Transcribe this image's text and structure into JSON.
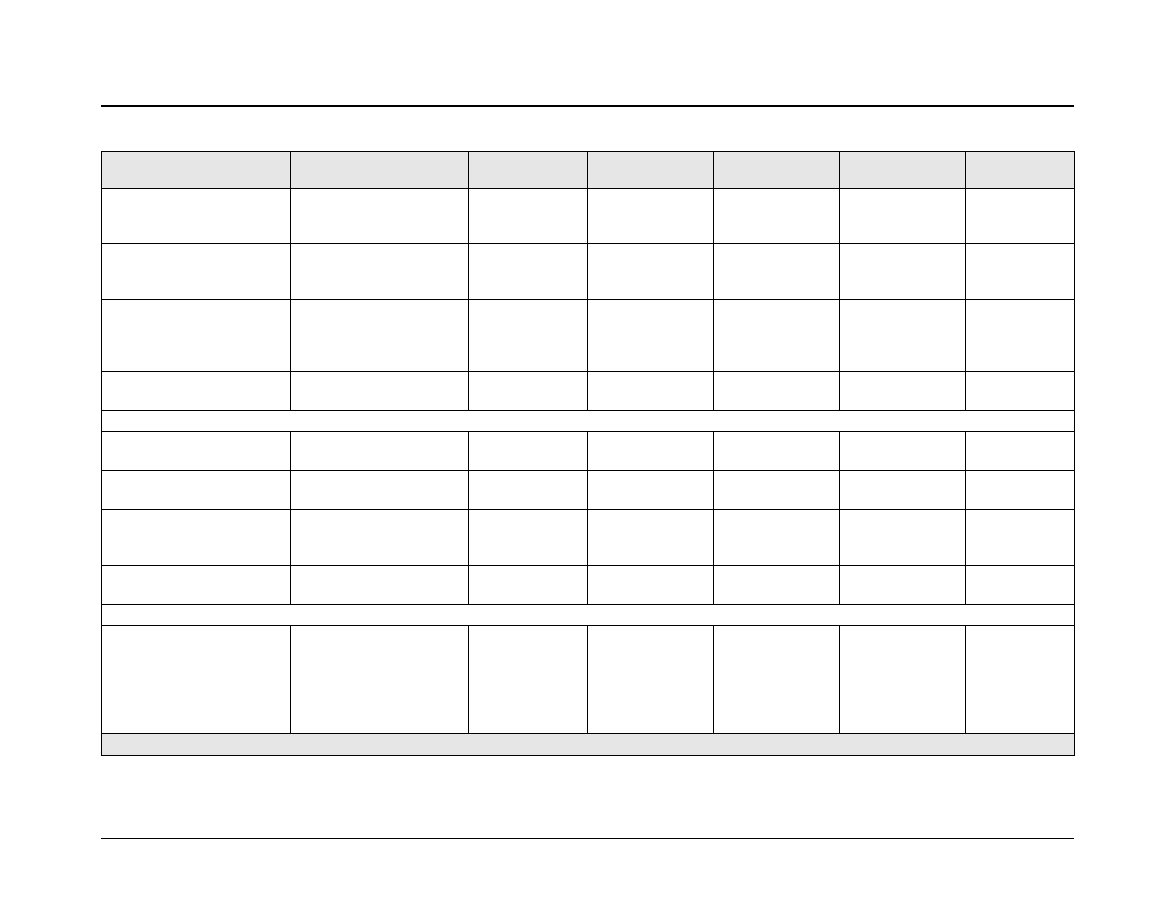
{
  "table": {
    "header": [
      "",
      "",
      "",
      "",
      "",
      "",
      ""
    ],
    "sections": [
      {
        "rows": [
          [
            "",
            "",
            "",
            "",
            "",
            "",
            ""
          ],
          [
            "",
            "",
            "",
            "",
            "",
            "",
            ""
          ],
          [
            "",
            "",
            "",
            "",
            "",
            "",
            ""
          ],
          [
            "",
            "",
            "",
            "",
            "",
            "",
            ""
          ]
        ]
      },
      {
        "label": "",
        "rows": [
          [
            "",
            "",
            "",
            "",
            "",
            "",
            ""
          ],
          [
            "",
            "",
            "",
            "",
            "",
            "",
            ""
          ],
          [
            "",
            "",
            "",
            "",
            "",
            "",
            ""
          ],
          [
            "",
            "",
            "",
            "",
            "",
            "",
            ""
          ]
        ]
      },
      {
        "label": "",
        "rows": [
          [
            "",
            "",
            "",
            "",
            "",
            "",
            ""
          ]
        ]
      }
    ],
    "footer": "",
    "header_fill": "#e6e6e6"
  }
}
